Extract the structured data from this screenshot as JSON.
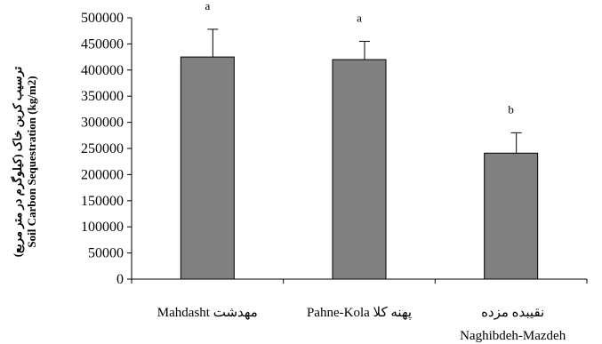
{
  "chart_data": {
    "type": "bar",
    "categories": [
      {
        "latin": "Mahdasht",
        "persian": "مهدشت"
      },
      {
        "latin": "Pahne-Kola",
        "persian": "پهنه کلا"
      },
      {
        "latin": "Naghibdeh-Mazdeh",
        "persian": "نقیبده مزده"
      }
    ],
    "values": [
      425000,
      420000,
      241000
    ],
    "error_upper": [
      478000,
      455000,
      280000
    ],
    "significance": [
      "a",
      "a",
      "b"
    ],
    "ylabel": "Soil Carbon Sequestration (kg/m2)",
    "ylabel_persian": "ترسیب کربن خاک (کیلوگرم در متر مربع)",
    "ylim": [
      0,
      500000
    ],
    "yticks": [
      "0",
      "50000",
      "100000",
      "150000",
      "200000",
      "250000",
      "300000",
      "350000",
      "400000",
      "450000",
      "500000"
    ],
    "bar_color": "#808080",
    "grid": false
  }
}
